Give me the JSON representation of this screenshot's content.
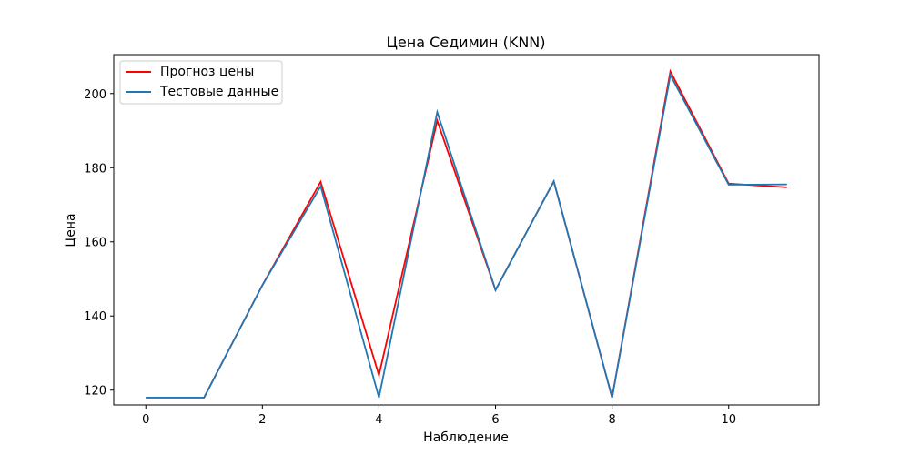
{
  "chart_data": {
    "type": "line",
    "title": "Цена Седимин (KNN)",
    "xlabel": "Наблюдение",
    "ylabel": "Цена",
    "xlim": [
      -0.55,
      11.55
    ],
    "ylim": [
      116,
      210.5
    ],
    "xticks": [
      0,
      2,
      4,
      6,
      8,
      10
    ],
    "yticks": [
      120,
      140,
      160,
      180,
      200
    ],
    "grid": false,
    "legend": "upper-left",
    "x": [
      0,
      1,
      2,
      3,
      4,
      5,
      6,
      7,
      8,
      9,
      10,
      11
    ],
    "series": [
      {
        "name": "Прогноз цены",
        "color": "#ff0000",
        "values": [
          118.0,
          118.0,
          148.3,
          176.2,
          124.0,
          192.7,
          147.0,
          176.3,
          118.0,
          206.0,
          175.7,
          174.7
        ]
      },
      {
        "name": "Тестовые данные",
        "color": "#1f77b4",
        "values": [
          118.0,
          118.0,
          148.3,
          175.0,
          118.0,
          195.0,
          147.0,
          176.3,
          118.0,
          205.0,
          175.4,
          175.5
        ]
      }
    ]
  }
}
